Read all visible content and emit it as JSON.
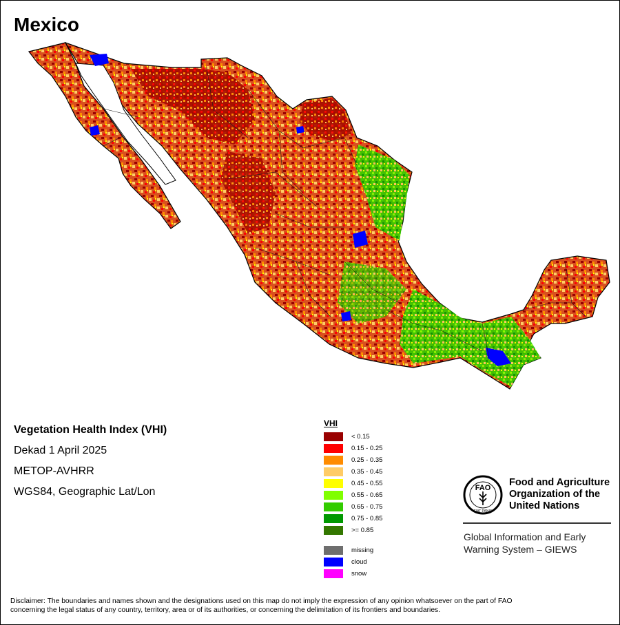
{
  "map": {
    "title": "Mexico",
    "info": {
      "product": "Vegetation Health Index (VHI)",
      "period": "Dekad 1 April 2025",
      "sensor": "METOP-AVHRR",
      "projection": "WGS84, Geographic Lat/Lon"
    }
  },
  "legend": {
    "title": "VHI",
    "classes": [
      {
        "label": "< 0.15",
        "color": "#990000"
      },
      {
        "label": "0.15 - 0.25",
        "color": "#ff0000"
      },
      {
        "label": "0.25 - 0.35",
        "color": "#ff8c00"
      },
      {
        "label": "0.35 - 0.45",
        "color": "#ffcc66"
      },
      {
        "label": "0.45 - 0.55",
        "color": "#ffff00"
      },
      {
        "label": "0.55 - 0.65",
        "color": "#80ff00"
      },
      {
        "label": "0.65 - 0.75",
        "color": "#33cc00"
      },
      {
        "label": "0.75 - 0.85",
        "color": "#009900"
      },
      {
        "label": ">= 0.85",
        "color": "#337700"
      }
    ],
    "special": [
      {
        "label": "missing",
        "color": "#6e6e6e"
      },
      {
        "label": "cloud",
        "color": "#0000ff"
      },
      {
        "label": "snow",
        "color": "#ff00ff"
      }
    ]
  },
  "organization": {
    "name_line1": "Food and Agriculture",
    "name_line2": "Organization of the",
    "name_line3": "United Nations",
    "system_line1": "Global Information and Early",
    "system_line2": "Warning System – GIEWS",
    "logo_text": "FAO",
    "logo_motto": "FIAT PANIS"
  },
  "disclaimer_line1": "Disclaimer: The boundaries and names shown and the designations used on this map do not imply the expression of any opinion whatsoever on the part of FAO",
  "disclaimer_line2": "concerning the legal status of any country, territory, area or of its authorities, or concerning the delimitation of its frontiers and boundaries."
}
